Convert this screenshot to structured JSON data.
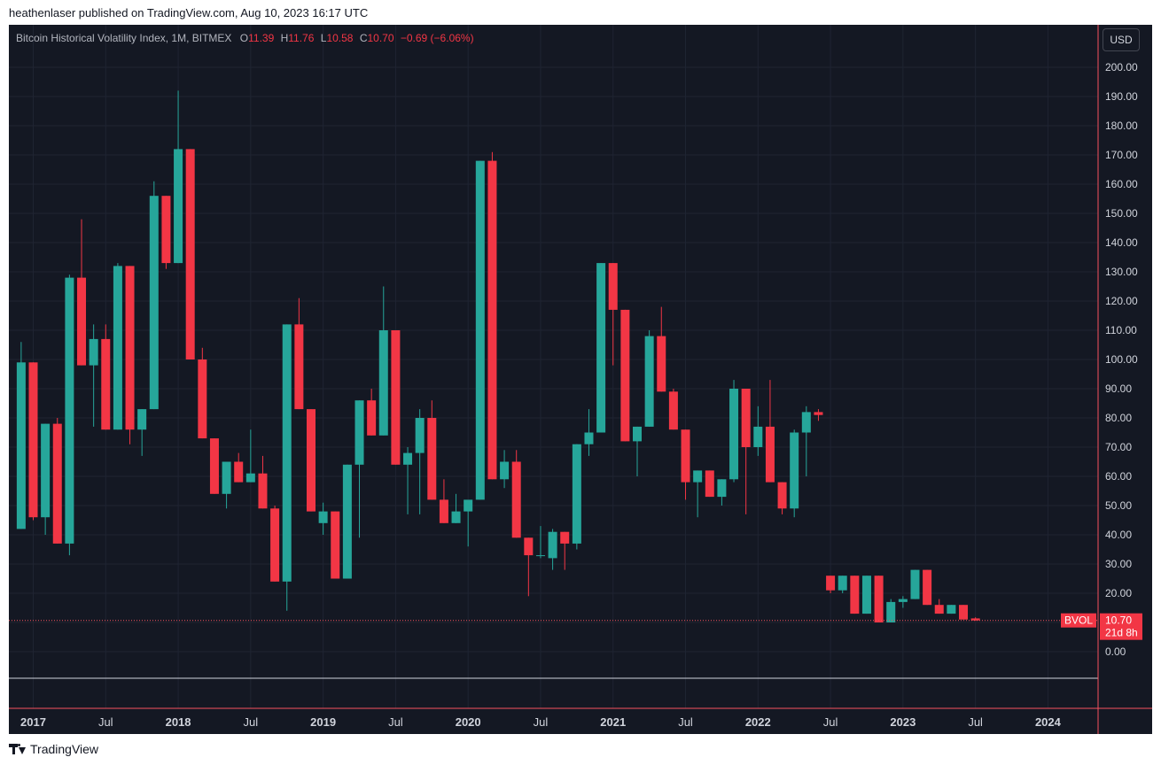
{
  "caption": "heathenlaser published on TradingView.com, Aug 10, 2023 16:17 UTC",
  "legend": {
    "title": "Bitcoin Historical Volatility Index, 1M, BITMEX",
    "o_label": "O",
    "o_value": "11.39",
    "h_label": "H",
    "h_value": "11.76",
    "l_label": "L",
    "l_value": "10.58",
    "c_label": "C",
    "c_value": "10.70",
    "change": "−0.69 (−6.06%)"
  },
  "currency": "USD",
  "footer": {
    "brand": "TradingView",
    "logo_icon": "tradingview-logo-icon"
  },
  "colors": {
    "up": "#26a69a",
    "down": "#f23645",
    "background": "#141823",
    "axis_text": "#d1d4dc",
    "accent": "#f7525f"
  },
  "chart_data": {
    "type": "candlestick",
    "symbol": "BVOL",
    "interval": "1M",
    "ylim": [
      0,
      200
    ],
    "y_ticks": [
      "200.00",
      "190.00",
      "180.00",
      "170.00",
      "160.00",
      "150.00",
      "140.00",
      "130.00",
      "120.00",
      "110.00",
      "100.00",
      "90.00",
      "80.00",
      "70.00",
      "60.00",
      "50.00",
      "40.00",
      "30.00",
      "20.00",
      "10.00",
      "0.00"
    ],
    "x_ticks": [
      {
        "label": "2017",
        "date": "2017-01",
        "bold": true
      },
      {
        "label": "Jul",
        "date": "2017-07",
        "bold": false
      },
      {
        "label": "2018",
        "date": "2018-01",
        "bold": true
      },
      {
        "label": "Jul",
        "date": "2018-07",
        "bold": false
      },
      {
        "label": "2019",
        "date": "2019-01",
        "bold": true
      },
      {
        "label": "Jul",
        "date": "2019-07",
        "bold": false
      },
      {
        "label": "2020",
        "date": "2020-01",
        "bold": true
      },
      {
        "label": "Jul",
        "date": "2020-07",
        "bold": false
      },
      {
        "label": "2021",
        "date": "2021-01",
        "bold": true
      },
      {
        "label": "Jul",
        "date": "2021-07",
        "bold": false
      },
      {
        "label": "2022",
        "date": "2022-01",
        "bold": true
      },
      {
        "label": "Jul",
        "date": "2022-07",
        "bold": false
      },
      {
        "label": "2023",
        "date": "2023-01",
        "bold": true
      },
      {
        "label": "Jul",
        "date": "2023-07",
        "bold": false
      },
      {
        "label": "2024",
        "date": "2024-01",
        "bold": true
      }
    ],
    "candles": [
      {
        "d": "2016-12",
        "o": 42,
        "h": 106,
        "l": 42,
        "c": 99
      },
      {
        "d": "2017-01",
        "o": 99,
        "h": 99,
        "l": 45,
        "c": 46
      },
      {
        "d": "2017-02",
        "o": 46,
        "h": 78,
        "l": 40,
        "c": 78
      },
      {
        "d": "2017-03",
        "o": 78,
        "h": 80,
        "l": 37,
        "c": 37
      },
      {
        "d": "2017-04",
        "o": 37,
        "h": 129,
        "l": 33,
        "c": 128
      },
      {
        "d": "2017-05",
        "o": 128,
        "h": 148,
        "l": 98,
        "c": 98
      },
      {
        "d": "2017-06",
        "o": 98,
        "h": 112,
        "l": 77,
        "c": 107
      },
      {
        "d": "2017-07",
        "o": 107,
        "h": 112,
        "l": 76,
        "c": 76
      },
      {
        "d": "2017-08",
        "o": 76,
        "h": 133,
        "l": 76,
        "c": 132
      },
      {
        "d": "2017-09",
        "o": 132,
        "h": 132,
        "l": 71,
        "c": 76
      },
      {
        "d": "2017-10",
        "o": 76,
        "h": 83,
        "l": 67,
        "c": 83
      },
      {
        "d": "2017-11",
        "o": 83,
        "h": 161,
        "l": 83,
        "c": 156
      },
      {
        "d": "2017-12",
        "o": 156,
        "h": 156,
        "l": 131,
        "c": 133
      },
      {
        "d": "2018-01",
        "o": 133,
        "h": 192,
        "l": 133,
        "c": 172
      },
      {
        "d": "2018-02",
        "o": 172,
        "h": 172,
        "l": 100,
        "c": 100
      },
      {
        "d": "2018-03",
        "o": 100,
        "h": 104,
        "l": 73,
        "c": 73
      },
      {
        "d": "2018-04",
        "o": 73,
        "h": 73,
        "l": 54,
        "c": 54
      },
      {
        "d": "2018-05",
        "o": 54,
        "h": 65,
        "l": 49,
        "c": 65
      },
      {
        "d": "2018-06",
        "o": 65,
        "h": 68,
        "l": 58,
        "c": 58
      },
      {
        "d": "2018-07",
        "o": 58,
        "h": 76,
        "l": 58,
        "c": 61
      },
      {
        "d": "2018-08",
        "o": 61,
        "h": 67,
        "l": 49,
        "c": 49
      },
      {
        "d": "2018-09",
        "o": 49,
        "h": 50,
        "l": 24,
        "c": 24
      },
      {
        "d": "2018-10",
        "o": 24,
        "h": 112,
        "l": 14,
        "c": 112
      },
      {
        "d": "2018-11",
        "o": 112,
        "h": 121,
        "l": 83,
        "c": 83
      },
      {
        "d": "2018-12",
        "o": 83,
        "h": 83,
        "l": 48,
        "c": 48
      },
      {
        "d": "2019-01",
        "o": 44,
        "h": 51,
        "l": 40,
        "c": 48
      },
      {
        "d": "2019-02",
        "o": 48,
        "h": 48,
        "l": 25,
        "c": 25
      },
      {
        "d": "2019-03",
        "o": 25,
        "h": 64,
        "l": 25,
        "c": 64
      },
      {
        "d": "2019-04",
        "o": 64,
        "h": 86,
        "l": 39,
        "c": 86
      },
      {
        "d": "2019-05",
        "o": 86,
        "h": 90,
        "l": 74,
        "c": 74
      },
      {
        "d": "2019-06",
        "o": 74,
        "h": 125,
        "l": 74,
        "c": 110
      },
      {
        "d": "2019-07",
        "o": 110,
        "h": 110,
        "l": 64,
        "c": 64
      },
      {
        "d": "2019-08",
        "o": 64,
        "h": 70,
        "l": 47,
        "c": 68
      },
      {
        "d": "2019-09",
        "o": 68,
        "h": 83,
        "l": 47,
        "c": 80
      },
      {
        "d": "2019-10",
        "o": 80,
        "h": 86,
        "l": 52,
        "c": 52
      },
      {
        "d": "2019-11",
        "o": 52,
        "h": 59,
        "l": 44,
        "c": 44
      },
      {
        "d": "2019-12",
        "o": 44,
        "h": 54,
        "l": 44,
        "c": 48
      },
      {
        "d": "2020-01",
        "o": 48,
        "h": 51,
        "l": 36,
        "c": 52
      },
      {
        "d": "2020-02",
        "o": 52,
        "h": 168,
        "l": 52,
        "c": 168
      },
      {
        "d": "2020-03",
        "o": 168,
        "h": 171,
        "l": 59,
        "c": 59
      },
      {
        "d": "2020-04",
        "o": 59,
        "h": 69,
        "l": 56,
        "c": 65
      },
      {
        "d": "2020-05",
        "o": 65,
        "h": 69,
        "l": 39,
        "c": 39
      },
      {
        "d": "2020-06",
        "o": 39,
        "h": 39,
        "l": 19,
        "c": 33
      },
      {
        "d": "2020-07",
        "o": 33,
        "h": 43,
        "l": 32,
        "c": 33
      },
      {
        "d": "2020-08",
        "o": 32,
        "h": 42,
        "l": 28,
        "c": 41
      },
      {
        "d": "2020-09",
        "o": 41,
        "h": 41,
        "l": 28,
        "c": 37
      },
      {
        "d": "2020-10",
        "o": 37,
        "h": 71,
        "l": 35,
        "c": 71
      },
      {
        "d": "2020-11",
        "o": 71,
        "h": 83,
        "l": 67,
        "c": 75
      },
      {
        "d": "2020-12",
        "o": 75,
        "h": 133,
        "l": 75,
        "c": 133
      },
      {
        "d": "2021-01",
        "o": 133,
        "h": 133,
        "l": 98,
        "c": 117
      },
      {
        "d": "2021-02",
        "o": 117,
        "h": 117,
        "l": 72,
        "c": 72
      },
      {
        "d": "2021-03",
        "o": 72,
        "h": 77,
        "l": 60,
        "c": 77
      },
      {
        "d": "2021-04",
        "o": 77,
        "h": 110,
        "l": 77,
        "c": 108
      },
      {
        "d": "2021-05",
        "o": 108,
        "h": 118,
        "l": 89,
        "c": 89
      },
      {
        "d": "2021-06",
        "o": 89,
        "h": 90,
        "l": 76,
        "c": 76
      },
      {
        "d": "2021-07",
        "o": 76,
        "h": 76,
        "l": 52,
        "c": 58
      },
      {
        "d": "2021-08",
        "o": 58,
        "h": 62,
        "l": 46,
        "c": 62
      },
      {
        "d": "2021-09",
        "o": 62,
        "h": 62,
        "l": 53,
        "c": 53
      },
      {
        "d": "2021-10",
        "o": 53,
        "h": 59,
        "l": 50,
        "c": 59
      },
      {
        "d": "2021-11",
        "o": 59,
        "h": 93,
        "l": 58,
        "c": 90
      },
      {
        "d": "2021-12",
        "o": 90,
        "h": 90,
        "l": 47,
        "c": 70
      },
      {
        "d": "2022-01",
        "o": 70,
        "h": 84,
        "l": 67,
        "c": 77
      },
      {
        "d": "2022-02",
        "o": 77,
        "h": 93,
        "l": 58,
        "c": 58
      },
      {
        "d": "2022-03",
        "o": 58,
        "h": 58,
        "l": 47,
        "c": 49
      },
      {
        "d": "2022-04",
        "o": 49,
        "h": 76,
        "l": 46,
        "c": 75
      },
      {
        "d": "2022-05",
        "o": 75,
        "h": 84,
        "l": 60,
        "c": 82
      },
      {
        "d": "2022-06",
        "o": 82,
        "h": 83,
        "l": 79,
        "c": 81
      },
      {
        "d": "2022-07",
        "o": 26,
        "h": 26,
        "l": 20,
        "c": 21
      },
      {
        "d": "2022-08",
        "o": 21,
        "h": 26,
        "l": 20,
        "c": 26
      },
      {
        "d": "2022-09",
        "o": 26,
        "h": 26,
        "l": 13,
        "c": 13
      },
      {
        "d": "2022-10",
        "o": 13,
        "h": 26,
        "l": 13,
        "c": 26
      },
      {
        "d": "2022-11",
        "o": 26,
        "h": 26,
        "l": 10,
        "c": 10
      },
      {
        "d": "2022-12",
        "o": 10,
        "h": 18,
        "l": 10,
        "c": 17
      },
      {
        "d": "2023-01",
        "o": 17,
        "h": 19,
        "l": 15,
        "c": 18
      },
      {
        "d": "2023-02",
        "o": 18,
        "h": 28,
        "l": 18,
        "c": 28
      },
      {
        "d": "2023-03",
        "o": 28,
        "h": 28,
        "l": 16,
        "c": 16
      },
      {
        "d": "2023-04",
        "o": 16,
        "h": 18,
        "l": 13,
        "c": 13
      },
      {
        "d": "2023-05",
        "o": 13,
        "h": 16,
        "l": 13,
        "c": 16
      },
      {
        "d": "2023-06",
        "o": 16,
        "h": 16,
        "l": 11,
        "c": 11
      },
      {
        "d": "2023-07",
        "o": 11.39,
        "h": 11.76,
        "l": 10.58,
        "c": 10.7
      }
    ],
    "last_price": {
      "symbol": "BVOL",
      "value": "10.70",
      "countdown": "21d 8h",
      "numeric": 10.7
    }
  }
}
